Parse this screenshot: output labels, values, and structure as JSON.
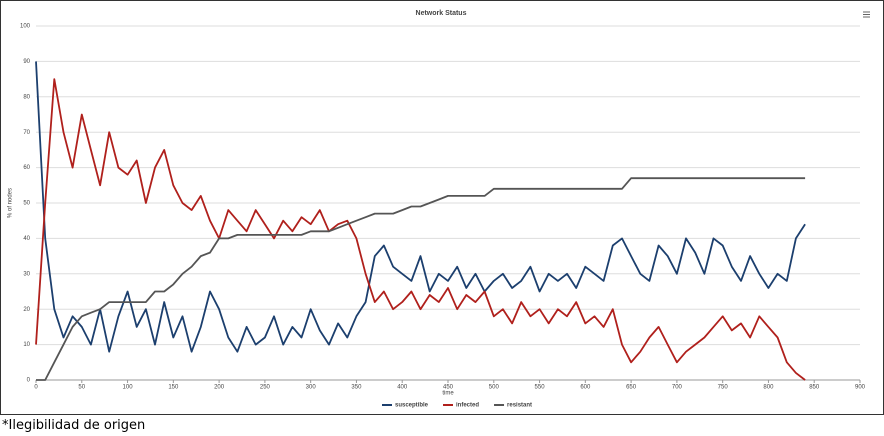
{
  "chart_data": {
    "type": "line",
    "title": "Network Status",
    "xlabel": "time",
    "ylabel": "% of nodes",
    "x": [
      0,
      10,
      20,
      30,
      40,
      50,
      60,
      70,
      80,
      90,
      100,
      110,
      120,
      130,
      140,
      150,
      160,
      170,
      180,
      190,
      200,
      210,
      220,
      230,
      240,
      250,
      260,
      270,
      280,
      290,
      300,
      310,
      320,
      330,
      340,
      350,
      360,
      370,
      380,
      390,
      400,
      410,
      420,
      430,
      440,
      450,
      460,
      470,
      480,
      490,
      500,
      510,
      520,
      530,
      540,
      550,
      560,
      570,
      580,
      590,
      600,
      610,
      620,
      630,
      640,
      650,
      660,
      670,
      680,
      690,
      700,
      710,
      720,
      730,
      740,
      750,
      760,
      770,
      780,
      790,
      800,
      810,
      820,
      830,
      840
    ],
    "series": [
      {
        "name": "susceptible",
        "color": "#1c3f6e",
        "values": [
          90,
          40,
          20,
          12,
          18,
          15,
          10,
          20,
          8,
          18,
          25,
          15,
          20,
          10,
          22,
          12,
          18,
          8,
          15,
          25,
          20,
          12,
          8,
          15,
          10,
          12,
          18,
          10,
          15,
          12,
          20,
          14,
          10,
          16,
          12,
          18,
          22,
          35,
          38,
          32,
          30,
          28,
          35,
          25,
          30,
          28,
          32,
          26,
          30,
          25,
          28,
          30,
          26,
          28,
          32,
          25,
          30,
          28,
          30,
          26,
          32,
          30,
          28,
          38,
          40,
          35,
          30,
          28,
          38,
          35,
          30,
          40,
          36,
          30,
          40,
          38,
          32,
          28,
          35,
          30,
          26,
          30,
          28,
          40,
          44
        ]
      },
      {
        "name": "infected",
        "color": "#b0201c",
        "values": [
          10,
          50,
          85,
          70,
          60,
          75,
          65,
          55,
          70,
          60,
          58,
          62,
          50,
          60,
          65,
          55,
          50,
          48,
          52,
          45,
          40,
          48,
          45,
          42,
          48,
          44,
          40,
          45,
          42,
          46,
          44,
          48,
          42,
          44,
          45,
          40,
          30,
          22,
          25,
          20,
          22,
          25,
          20,
          24,
          22,
          26,
          20,
          24,
          22,
          25,
          18,
          20,
          16,
          22,
          18,
          20,
          16,
          20,
          18,
          22,
          16,
          18,
          15,
          20,
          10,
          5,
          8,
          12,
          15,
          10,
          5,
          8,
          10,
          12,
          15,
          18,
          14,
          16,
          12,
          18,
          15,
          12,
          5,
          2,
          0
        ]
      },
      {
        "name": "resistant",
        "color": "#555555",
        "values": [
          0,
          0,
          5,
          10,
          15,
          18,
          19,
          20,
          22,
          22,
          22,
          22,
          22,
          25,
          25,
          27,
          30,
          32,
          35,
          36,
          40,
          40,
          41,
          41,
          41,
          41,
          41,
          41,
          41,
          41,
          42,
          42,
          42,
          43,
          44,
          45,
          46,
          47,
          47,
          47,
          48,
          49,
          49,
          50,
          51,
          52,
          52,
          52,
          52,
          52,
          54,
          54,
          54,
          54,
          54,
          54,
          54,
          54,
          54,
          54,
          54,
          54,
          54,
          54,
          54,
          57,
          57,
          57,
          57,
          57,
          57,
          57,
          57,
          57,
          57,
          57,
          57,
          57,
          57,
          57,
          57,
          57,
          57,
          57,
          57
        ]
      }
    ],
    "xlim": [
      0,
      900
    ],
    "xticks": [
      0,
      50,
      100,
      150,
      200,
      250,
      300,
      350,
      400,
      450,
      500,
      550,
      600,
      650,
      700,
      750,
      800,
      850,
      900
    ],
    "ylim": [
      0,
      100
    ],
    "yticks": [
      0,
      10,
      20,
      30,
      40,
      50,
      60,
      70,
      80,
      90,
      100
    ],
    "grid": true,
    "legend": "bottom"
  },
  "caption": "*Ilegibilidad de origen"
}
